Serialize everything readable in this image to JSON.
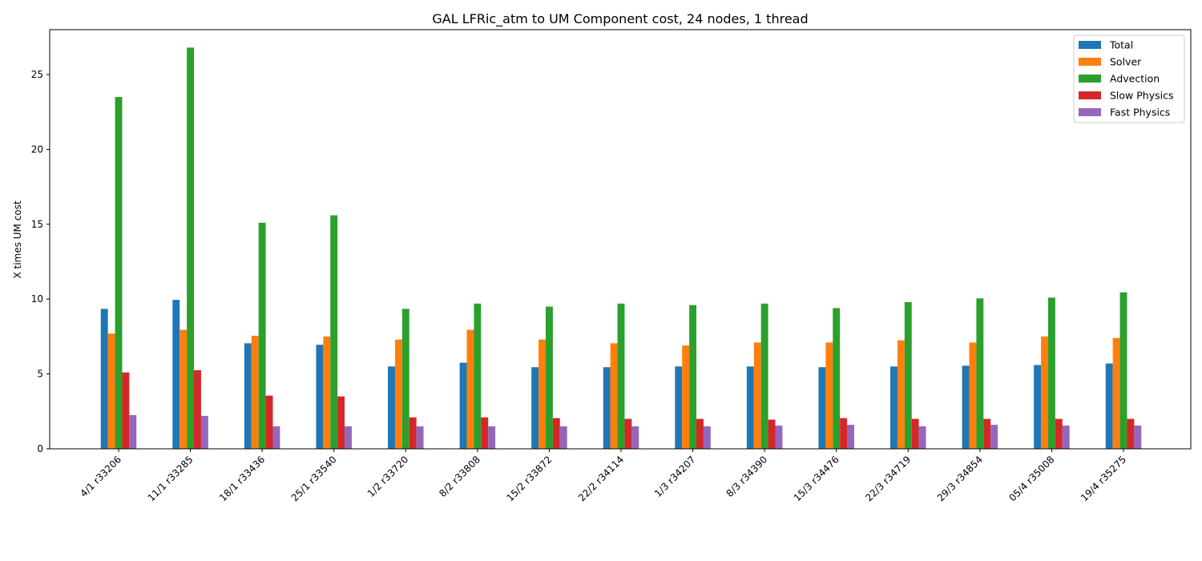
{
  "chart_data": {
    "type": "bar",
    "title": "GAL LFRic_atm to UM Component cost, 24 nodes, 1 thread",
    "xlabel": "",
    "ylabel": "X times UM cost",
    "ylim": [
      0,
      28
    ],
    "yticks": [
      0,
      5,
      10,
      15,
      20,
      25
    ],
    "grid": false,
    "legend_position": "top-right",
    "categories": [
      "4/1 r33206",
      "11/1 r33285",
      "18/1 r33436",
      "25/1 r33540",
      "1/2 r33720",
      "8/2 r33808",
      "15/2 r33872",
      "22/2 r34114",
      "1/3 r34207",
      "8/3 r34390",
      "15/3 r34476",
      "22/3 r34719",
      "29/3 r34854",
      "05/4 r35008",
      "19/4 r35275"
    ],
    "series": [
      {
        "name": "Total",
        "color": "#1f77b4",
        "values": [
          9.35,
          9.95,
          7.05,
          6.95,
          5.5,
          5.75,
          5.45,
          5.45,
          5.5,
          5.5,
          5.45,
          5.5,
          5.55,
          5.6,
          5.7
        ]
      },
      {
        "name": "Solver",
        "color": "#ff7f0e",
        "values": [
          7.7,
          7.95,
          7.55,
          7.5,
          7.3,
          7.95,
          7.3,
          7.05,
          6.9,
          7.1,
          7.1,
          7.25,
          7.1,
          7.5,
          7.4
        ]
      },
      {
        "name": "Advection",
        "color": "#2ca02c",
        "values": [
          23.5,
          26.8,
          15.1,
          15.6,
          9.35,
          9.7,
          9.5,
          9.7,
          9.6,
          9.7,
          9.4,
          9.8,
          10.05,
          10.1,
          10.45
        ]
      },
      {
        "name": "Slow Physics",
        "color": "#d62728",
        "values": [
          5.1,
          5.25,
          3.55,
          3.5,
          2.1,
          2.1,
          2.05,
          2.0,
          2.0,
          1.95,
          2.05,
          2.0,
          2.0,
          2.0,
          2.0
        ]
      },
      {
        "name": "Fast Physics",
        "color": "#9467bd",
        "values": [
          2.25,
          2.2,
          1.5,
          1.5,
          1.5,
          1.5,
          1.5,
          1.5,
          1.5,
          1.55,
          1.6,
          1.5,
          1.6,
          1.55,
          1.55
        ]
      }
    ]
  }
}
